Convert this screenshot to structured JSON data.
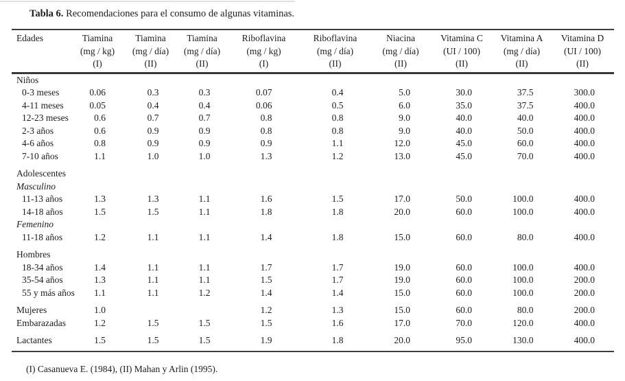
{
  "title": {
    "bold": "Tabla 6.",
    "text": " Recomendaciones para el consumo de algunas vitaminas."
  },
  "footnote": "(I) Casanueva E. (1984), (II) Mahan y Arlin (1995).",
  "colors": {
    "background": "#ffffff",
    "text": "#1c1c1c",
    "rule": "#3d3d3d"
  },
  "table": {
    "columns": [
      {
        "key": "edades",
        "lines": [
          "Edades"
        ]
      },
      {
        "key": "tiamina-kg-i",
        "lines": [
          "Tiamina",
          "(mg / kg)",
          "(I)"
        ]
      },
      {
        "key": "tiamina-dia-ii-a",
        "lines": [
          "Tiamina",
          "(mg / día)",
          "(II)"
        ]
      },
      {
        "key": "tiamina-dia-ii-b",
        "lines": [
          "Tiamina",
          "(mg / día)",
          "(II)"
        ]
      },
      {
        "key": "riboflavina-kg-i",
        "lines": [
          "Riboflavina",
          "(mg / kg)",
          "(I)"
        ]
      },
      {
        "key": "riboflavina-dia-ii",
        "lines": [
          "Riboflavina",
          "(mg / día)",
          "(II)"
        ]
      },
      {
        "key": "niacina-dia-ii",
        "lines": [
          "Niacina",
          "(mg / día)",
          "(II)"
        ]
      },
      {
        "key": "vitamina-c-ui-ii",
        "lines": [
          "Vitamina C",
          "(UI / 100)",
          "(II)"
        ]
      },
      {
        "key": "vitamina-a-dia-ii",
        "lines": [
          "Vitamina A",
          "(mg / día)",
          "(II)"
        ]
      },
      {
        "key": "vitamina-d-ui-ii",
        "lines": [
          "Vitamina D",
          "(UI / 100)",
          "(II)"
        ]
      }
    ],
    "rows": [
      {
        "type": "group",
        "label": "Niños"
      },
      {
        "type": "data",
        "indent": true,
        "label": "0-3 meses",
        "values": [
          "0.06",
          "0.3",
          "0.3",
          "0.07",
          "0.4",
          "5.0",
          "30.0",
          "37.5",
          "300.0"
        ]
      },
      {
        "type": "data",
        "indent": true,
        "label": "4-11 meses",
        "values": [
          "0.05",
          "0.4",
          "0.4",
          "0.06",
          "0.5",
          "6.0",
          "35.0",
          "37.5",
          "400.0"
        ]
      },
      {
        "type": "data",
        "indent": true,
        "label": "12-23 meses",
        "values": [
          "0.6",
          "0.7",
          "0.7",
          "0.8",
          "0.8",
          "9.0",
          "40.0",
          "40.0",
          "400.0"
        ]
      },
      {
        "type": "data",
        "indent": true,
        "label": "2-3 años",
        "values": [
          "0.6",
          "0.9",
          "0.9",
          "0.8",
          "0.8",
          "9.0",
          "40.0",
          "50.0",
          "400.0"
        ]
      },
      {
        "type": "data",
        "indent": true,
        "label": "4-6 años",
        "values": [
          "0.8",
          "0.9",
          "0.9",
          "0.9",
          "1.1",
          "12.0",
          "45.0",
          "60.0",
          "400.0"
        ]
      },
      {
        "type": "data",
        "indent": true,
        "label": "7-10 años",
        "values": [
          "1.1",
          "1.0",
          "1.0",
          "1.3",
          "1.2",
          "13.0",
          "45.0",
          "70.0",
          "400.0"
        ]
      },
      {
        "type": "group",
        "gap": true,
        "label": "Adolescentes"
      },
      {
        "type": "subgroup",
        "label": "Masculino"
      },
      {
        "type": "data",
        "indent": true,
        "label": "11-13 años",
        "values": [
          "1.3",
          "1.3",
          "1.1",
          "1.6",
          "1.5",
          "17.0",
          "50.0",
          "100.0",
          "400.0"
        ]
      },
      {
        "type": "data",
        "indent": true,
        "label": "14-18 años",
        "values": [
          "1.5",
          "1.5",
          "1.1",
          "1.8",
          "1.8",
          "20.0",
          "60.0",
          "100.0",
          "400.0"
        ]
      },
      {
        "type": "subgroup",
        "label": "Femenino"
      },
      {
        "type": "data",
        "indent": true,
        "label": "11-18 años",
        "values": [
          "1.2",
          "1.1",
          "1.1",
          "1.4",
          "1.8",
          "15.0",
          "60.0",
          "80.0",
          "400.0"
        ]
      },
      {
        "type": "group",
        "gap": true,
        "label": "Hombres"
      },
      {
        "type": "data",
        "indent": true,
        "label": "18-34 años",
        "values": [
          "1.4",
          "1.1",
          "1.1",
          "1.7",
          "1.7",
          "19.0",
          "60.0",
          "100.0",
          "400.0"
        ]
      },
      {
        "type": "data",
        "indent": true,
        "label": "35-54 años",
        "values": [
          "1.3",
          "1.1",
          "1.1",
          "1.5",
          "1.7",
          "19.0",
          "60.0",
          "100.0",
          "200.0"
        ]
      },
      {
        "type": "data",
        "indent": true,
        "label": "55 y más años",
        "values": [
          "1.1",
          "1.1",
          "1.2",
          "1.4",
          "1.4",
          "15.0",
          "60.0",
          "100.0",
          "200.0"
        ]
      },
      {
        "type": "data",
        "gap": true,
        "indent": false,
        "label": "Mujeres",
        "values": [
          "1.0",
          "",
          "",
          "1.2",
          "1.3",
          "15.0",
          "60.0",
          "80.0",
          "200.0"
        ]
      },
      {
        "type": "data",
        "indent": false,
        "label": "Embarazadas",
        "values": [
          "1.2",
          "1.5",
          "1.5",
          "1.5",
          "1.6",
          "17.0",
          "70.0",
          "120.0",
          "400.0"
        ]
      },
      {
        "type": "data",
        "gap": true,
        "indent": false,
        "label": "Lactantes",
        "values": [
          "1.5",
          "1.5",
          "1.5",
          "1.9",
          "1.8",
          "20.0",
          "95.0",
          "130.0",
          "400.0"
        ]
      }
    ]
  }
}
